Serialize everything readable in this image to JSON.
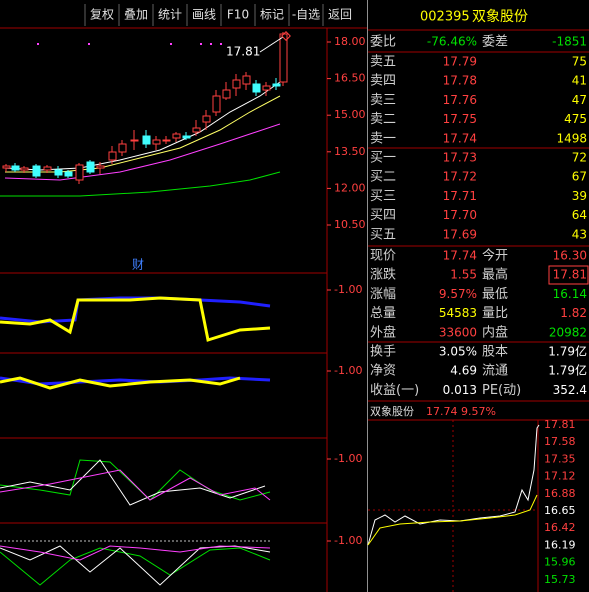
{
  "toolbar": [
    "复权",
    "叠加",
    "统计",
    "画线",
    "F10",
    "标记",
    "-自选",
    "返回"
  ],
  "quote": {
    "code": "002395",
    "name": "双象股份"
  },
  "order_book": {
    "header": [
      "委比",
      "-76.46%",
      "委差",
      "-1851"
    ],
    "asks": [
      [
        "卖五",
        "17.79",
        "75"
      ],
      [
        "卖四",
        "17.78",
        "41"
      ],
      [
        "卖三",
        "17.76",
        "47"
      ],
      [
        "卖二",
        "17.75",
        "475"
      ],
      [
        "卖一",
        "17.74",
        "1498"
      ]
    ],
    "bids": [
      [
        "买一",
        "17.73",
        "72"
      ],
      [
        "买二",
        "17.72",
        "67"
      ],
      [
        "买三",
        "17.71",
        "39"
      ],
      [
        "买四",
        "17.70",
        "64"
      ],
      [
        "买五",
        "17.69",
        "43"
      ]
    ]
  },
  "stats": [
    [
      "现价",
      "17.74",
      "今开",
      "16.30"
    ],
    [
      "涨跌",
      "1.55",
      "最高",
      "17.81"
    ],
    [
      "涨幅",
      "9.57%",
      "最低",
      "16.14"
    ],
    [
      "总量",
      "54583",
      "量比",
      "1.82"
    ],
    [
      "外盘",
      "33600",
      "内盘",
      "20982"
    ]
  ],
  "fundamentals": [
    [
      "换手",
      "3.05%",
      "股本",
      "1.79亿"
    ],
    [
      "净资",
      "4.69",
      "流通",
      "1.79亿"
    ],
    [
      "收益(一)",
      "0.013",
      "PE(动)",
      "352.4"
    ]
  ],
  "kline": {
    "annotation": "17.81",
    "marker": "财",
    "y_axis": [
      "18.00",
      "16.50",
      "15.00",
      "13.50",
      "12.00",
      "10.50"
    ],
    "indicator_labels": [
      "-1.00",
      "-1.00",
      "-1.00",
      "-1.00"
    ]
  },
  "intraday": {
    "name": "双象股份",
    "price": "17.74",
    "change": "9.57%",
    "y_axis": [
      "17.81",
      "17.58",
      "17.35",
      "17.12",
      "16.88",
      "16.65",
      "16.42",
      "16.19",
      "15.96",
      "15.73"
    ]
  }
}
